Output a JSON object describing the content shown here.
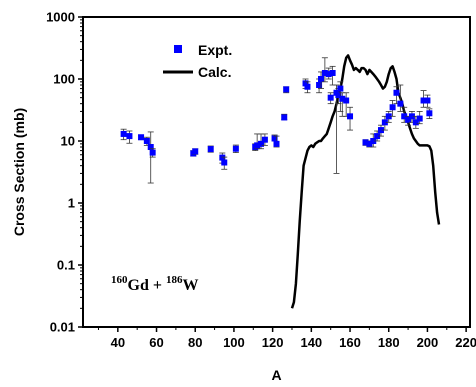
{
  "chart_data": {
    "type": "scatter",
    "xlabel": "A",
    "ylabel": "Cross Section (mb)",
    "xlim": [
      22,
      222
    ],
    "ylim": [
      0.01,
      1000
    ],
    "yscale": "log",
    "xticks": [
      40,
      60,
      80,
      100,
      120,
      140,
      160,
      180,
      200,
      220
    ],
    "yticks": [
      0.01,
      0.1,
      1,
      10,
      100,
      1000
    ],
    "ytick_labels": [
      "0.01",
      "0.1",
      "1",
      "10",
      "100",
      "1000"
    ],
    "legend": {
      "placement": "top-left",
      "entries": [
        {
          "label": "Expt.",
          "marker": "square"
        },
        {
          "label": "Calc.",
          "marker": "line"
        }
      ]
    },
    "annotation": {
      "prefix_a": "160",
      "sym_a": "Gd",
      "plus": " + ",
      "prefix_b": "186",
      "sym_b": "W"
    },
    "series": [
      {
        "name": "Expt.",
        "color": "#0000ff",
        "x": [
          43,
          46,
          52,
          55,
          57,
          58,
          79,
          80,
          88,
          94,
          95,
          101,
          111,
          112,
          114,
          116,
          121,
          122,
          126,
          127,
          137,
          138,
          144,
          145,
          147,
          149,
          150,
          151,
          153,
          154,
          155,
          156,
          158,
          160,
          168,
          170,
          172,
          174,
          176,
          178,
          180,
          182,
          184,
          186,
          188,
          190,
          192,
          194,
          196,
          198,
          200,
          201
        ],
        "y": [
          13,
          12,
          11.5,
          10,
          8,
          6.5,
          6.3,
          6.8,
          7.4,
          5.4,
          4.5,
          7.5,
          8,
          8.5,
          9,
          10.5,
          11,
          9,
          24,
          68,
          85,
          75,
          80,
          100,
          125,
          120,
          50,
          125,
          60,
          55,
          70,
          48,
          45,
          25,
          9.5,
          9,
          10,
          12,
          15,
          20,
          25,
          35,
          60,
          40,
          25,
          22,
          25,
          20,
          23,
          45,
          45,
          28
        ],
        "err_lo": [
          10.5,
          9.2,
          10.5,
          8.5,
          2.1,
          5.5,
          5.7,
          6.1,
          6.6,
          4.4,
          3.5,
          6.5,
          7,
          7.5,
          7.5,
          8.5,
          10,
          8,
          22,
          60,
          70,
          60,
          60,
          70,
          90,
          100,
          40,
          80,
          3,
          40,
          30,
          25,
          25,
          15,
          8.5,
          8,
          8,
          10,
          12,
          15,
          20,
          25,
          40,
          30,
          20,
          18,
          20,
          16,
          19,
          35,
          35,
          23
        ],
        "err_hi": [
          15.5,
          14.5,
          12.5,
          11.5,
          14,
          7.5,
          7,
          7.5,
          8.3,
          6.4,
          5.5,
          8.6,
          9,
          13,
          13,
          13,
          12.5,
          12,
          27,
          75,
          100,
          90,
          100,
          130,
          220,
          150,
          60,
          160,
          80,
          70,
          90,
          60,
          60,
          35,
          10.5,
          10,
          13,
          14.5,
          18,
          25,
          30,
          45,
          75,
          80,
          35,
          25,
          30,
          25,
          30,
          65,
          55,
          33
        ]
      },
      {
        "name": "Calc.",
        "color": "#000000",
        "x": [
          130,
          131,
          132,
          133,
          134,
          135,
          136,
          138,
          139,
          140,
          141,
          142,
          143,
          144,
          145,
          146,
          147,
          148,
          149,
          150,
          151,
          152,
          153,
          154,
          155,
          156,
          157,
          158,
          159,
          160,
          161,
          162,
          163,
          164,
          165,
          166,
          167,
          168,
          169,
          170,
          171,
          172,
          173,
          174,
          175,
          176,
          177,
          178,
          179,
          180,
          181,
          182,
          183,
          184,
          185,
          186,
          187,
          188,
          189,
          190,
          191,
          192,
          193,
          194,
          195,
          196,
          197,
          198,
          199,
          200,
          201,
          202,
          203,
          204,
          205,
          206
        ],
        "y": [
          0.02,
          0.025,
          0.05,
          0.15,
          0.5,
          1.5,
          4,
          7,
          8,
          8.5,
          8,
          9,
          9.5,
          10,
          10,
          11,
          12,
          13,
          16,
          20,
          25,
          30,
          40,
          55,
          70,
          100,
          160,
          220,
          240,
          200,
          170,
          140,
          150,
          140,
          130,
          150,
          150,
          140,
          120,
          140,
          130,
          120,
          110,
          100,
          90,
          80,
          70,
          75,
          90,
          120,
          150,
          160,
          130,
          100,
          60,
          50,
          40,
          30,
          25,
          20,
          16,
          13,
          11,
          10,
          9,
          8.5,
          8.5,
          8.5,
          8.5,
          8.5,
          8.2,
          7,
          4,
          1.5,
          0.7,
          0.45
        ]
      }
    ]
  }
}
